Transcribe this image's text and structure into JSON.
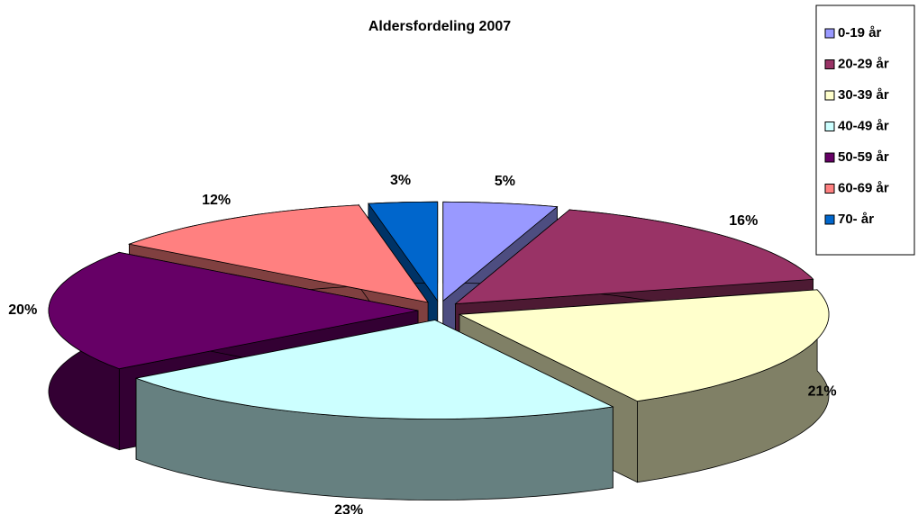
{
  "chart_data": {
    "type": "pie",
    "title": "Aldersfordeling 2007",
    "categories": [
      "0-19 år",
      "20-29 år",
      "30-39 år",
      "40-49 år",
      "50-59 år",
      "60-69 år",
      "70-  år"
    ],
    "values": [
      5,
      16,
      21,
      23,
      20,
      12,
      3
    ],
    "value_labels": [
      "5%",
      "16%",
      "21%",
      "23%",
      "20%",
      "12%",
      "3%"
    ],
    "colors": [
      "#9999ff",
      "#993366",
      "#ffffcc",
      "#ccffff",
      "#660066",
      "#ff8080",
      "#0066cc"
    ],
    "legend": "right"
  }
}
